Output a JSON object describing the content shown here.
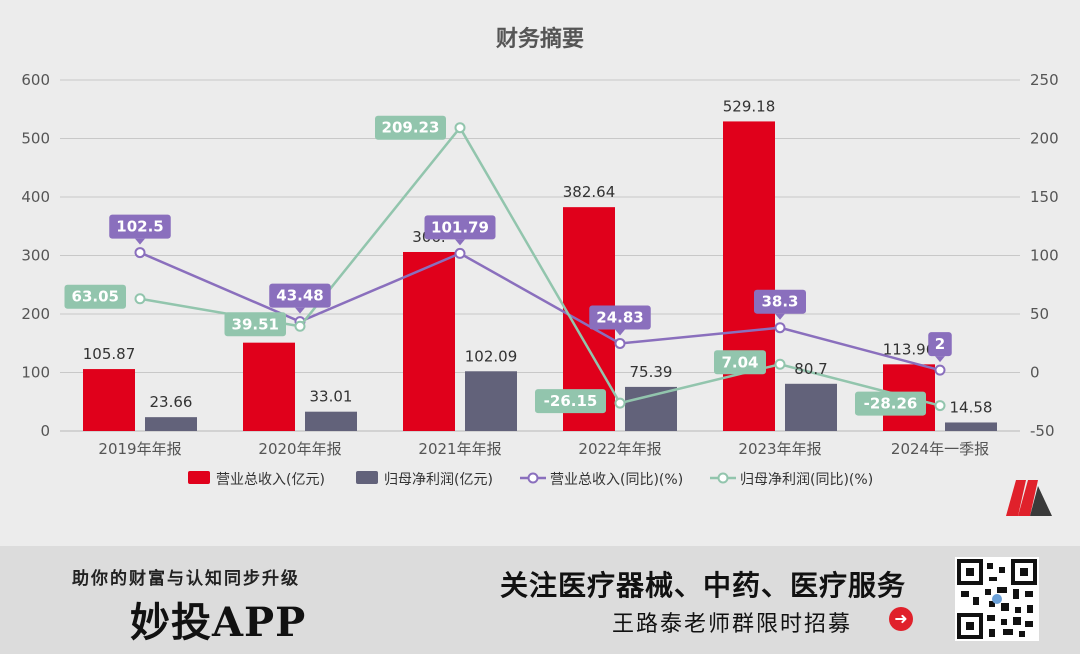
{
  "chart_data": {
    "type": "bar+line",
    "title": "财务摘要",
    "categories": [
      "2019年年报",
      "2020年年报",
      "2021年年报",
      "2022年年报",
      "2023年年报",
      "2024年一季报"
    ],
    "y_left": {
      "min": 0,
      "max": 600,
      "ticks": [
        0,
        100,
        200,
        300,
        400,
        500,
        600
      ]
    },
    "y_right": {
      "min": -50,
      "max": 250,
      "ticks": [
        -50,
        0,
        50,
        100,
        150,
        200,
        250
      ]
    },
    "bar_series": [
      {
        "name": "营业总收入(亿元)",
        "color": "#e0001b",
        "axis": "left",
        "values": [
          105.87,
          151.0,
          306.0,
          382.64,
          529.18,
          113.96
        ],
        "labels": [
          "105.87",
          "",
          "306.",
          "382.64",
          "529.18",
          "113.96"
        ]
      },
      {
        "name": "归母净利润(亿元)",
        "color": "#62627a",
        "axis": "left",
        "values": [
          23.66,
          33.01,
          102.09,
          75.39,
          80.7,
          14.58
        ],
        "labels": [
          "23.66",
          "33.01",
          "102.09",
          "75.39",
          "80.7",
          "14.58"
        ]
      }
    ],
    "line_series": [
      {
        "name": "营业总收入(同比)(%)",
        "color": "#8a6fbd",
        "axis": "right",
        "values": [
          102.5,
          43.48,
          101.79,
          24.83,
          38.3,
          2
        ],
        "labels": [
          "102.5",
          "43.48",
          "101.79",
          "24.83",
          "38.3",
          "2"
        ]
      },
      {
        "name": "归母净利润(同比)(%)",
        "color": "#92c5ad",
        "axis": "right",
        "values": [
          63.05,
          39.51,
          209.23,
          -26.15,
          7.04,
          -28.26
        ],
        "labels": [
          "63.05",
          "39.51",
          "209.23",
          "-26.15",
          "7.04",
          "-28.26"
        ]
      }
    ],
    "legend_position": "bottom"
  },
  "banner": {
    "left_tagline": "助你的财富与认知同步升级",
    "app_name": "妙投APP",
    "right_headline": "关注医疗器械、中药、医疗服务",
    "right_subline": "王路泰老师群限时招募",
    "arrow_icon": "arrow-right-circle-icon",
    "qr_icon": "qr-code-icon",
    "accent_color": "#e0212b"
  },
  "logo": {
    "icon": "brand-m-logo-icon",
    "color": "#e0212b"
  }
}
